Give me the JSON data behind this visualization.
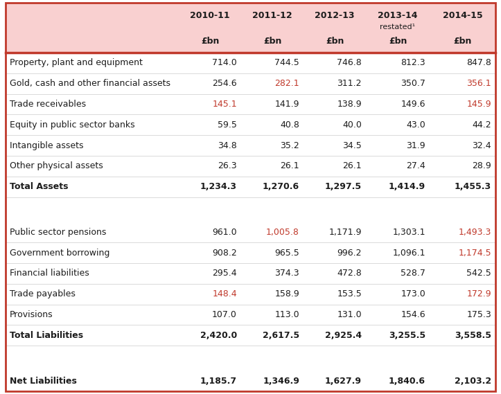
{
  "header_bg": "#f9d0d0",
  "border_color": "#c0392b",
  "text_color_dark": "#1c1c1c",
  "text_color_red": "#c0392b",
  "background": "#ffffff",
  "col_headers": [
    "2010-11",
    "2011-12",
    "2012-13",
    "2013-14",
    "2014-15"
  ],
  "col_sub": [
    "",
    "",
    "",
    "restated¹",
    ""
  ],
  "col_unit": [
    "£bn",
    "£bn",
    "£bn",
    "£bn",
    "£bn"
  ],
  "rows": [
    {
      "label": "Property, plant and equipment",
      "values": [
        "714.0",
        "744.5",
        "746.8",
        "812.3",
        "847.8"
      ],
      "bold": false,
      "red_cols": [],
      "spacer": false
    },
    {
      "label": "Gold, cash and other financial assets",
      "values": [
        "254.6",
        "282.1",
        "311.2",
        "350.7",
        "356.1"
      ],
      "bold": false,
      "red_cols": [
        1,
        4
      ],
      "spacer": false
    },
    {
      "label": "Trade receivables",
      "values": [
        "145.1",
        "141.9",
        "138.9",
        "149.6",
        "145.9"
      ],
      "bold": false,
      "red_cols": [
        0,
        4
      ],
      "spacer": false
    },
    {
      "label": "Equity in public sector banks",
      "values": [
        "59.5",
        "40.8",
        "40.0",
        "43.0",
        "44.2"
      ],
      "bold": false,
      "red_cols": [],
      "spacer": false
    },
    {
      "label": "Intangible assets",
      "values": [
        "34.8",
        "35.2",
        "34.5",
        "31.9",
        "32.4"
      ],
      "bold": false,
      "red_cols": [],
      "spacer": false
    },
    {
      "label": "Other physical assets",
      "values": [
        "26.3",
        "26.1",
        "26.1",
        "27.4",
        "28.9"
      ],
      "bold": false,
      "red_cols": [],
      "spacer": false
    },
    {
      "label": "Total Assets",
      "values": [
        "1,234.3",
        "1,270.6",
        "1,297.5",
        "1,414.9",
        "1,455.3"
      ],
      "bold": true,
      "red_cols": [],
      "spacer": false
    },
    {
      "label": "",
      "values": [
        "",
        "",
        "",
        "",
        ""
      ],
      "bold": false,
      "red_cols": [],
      "spacer": true
    },
    {
      "label": "",
      "values": [
        "",
        "",
        "",
        "",
        ""
      ],
      "bold": false,
      "red_cols": [],
      "spacer": true
    },
    {
      "label": "Public sector pensions",
      "values": [
        "961.0",
        "1,005.8",
        "1,171.9",
        "1,303.1",
        "1,493.3"
      ],
      "bold": false,
      "red_cols": [
        1,
        4
      ],
      "spacer": false
    },
    {
      "label": "Government borrowing",
      "values": [
        "908.2",
        "965.5",
        "996.2",
        "1,096.1",
        "1,174.5"
      ],
      "bold": false,
      "red_cols": [
        4
      ],
      "spacer": false
    },
    {
      "label": "Financial liabilities",
      "values": [
        "295.4",
        "374.3",
        "472.8",
        "528.7",
        "542.5"
      ],
      "bold": false,
      "red_cols": [],
      "spacer": false
    },
    {
      "label": "Trade payables",
      "values": [
        "148.4",
        "158.9",
        "153.5",
        "173.0",
        "172.9"
      ],
      "bold": false,
      "red_cols": [
        0,
        4
      ],
      "spacer": false
    },
    {
      "label": "Provisions",
      "values": [
        "107.0",
        "113.0",
        "131.0",
        "154.6",
        "175.3"
      ],
      "bold": false,
      "red_cols": [],
      "spacer": false
    },
    {
      "label": "Total Liabilities",
      "values": [
        "2,420.0",
        "2,617.5",
        "2,925.4",
        "3,255.5",
        "3,558.5"
      ],
      "bold": true,
      "red_cols": [],
      "spacer": false
    },
    {
      "label": "",
      "values": [
        "",
        "",
        "",
        "",
        ""
      ],
      "bold": false,
      "red_cols": [],
      "spacer": true
    },
    {
      "label": "",
      "values": [
        "",
        "",
        "",
        "",
        ""
      ],
      "bold": false,
      "red_cols": [],
      "spacer": true
    },
    {
      "label": "Net Liabilities",
      "values": [
        "1,185.7",
        "1,346.9",
        "1,627.9",
        "1,840.6",
        "2,103.2"
      ],
      "bold": true,
      "red_cols": [],
      "spacer": false
    }
  ]
}
